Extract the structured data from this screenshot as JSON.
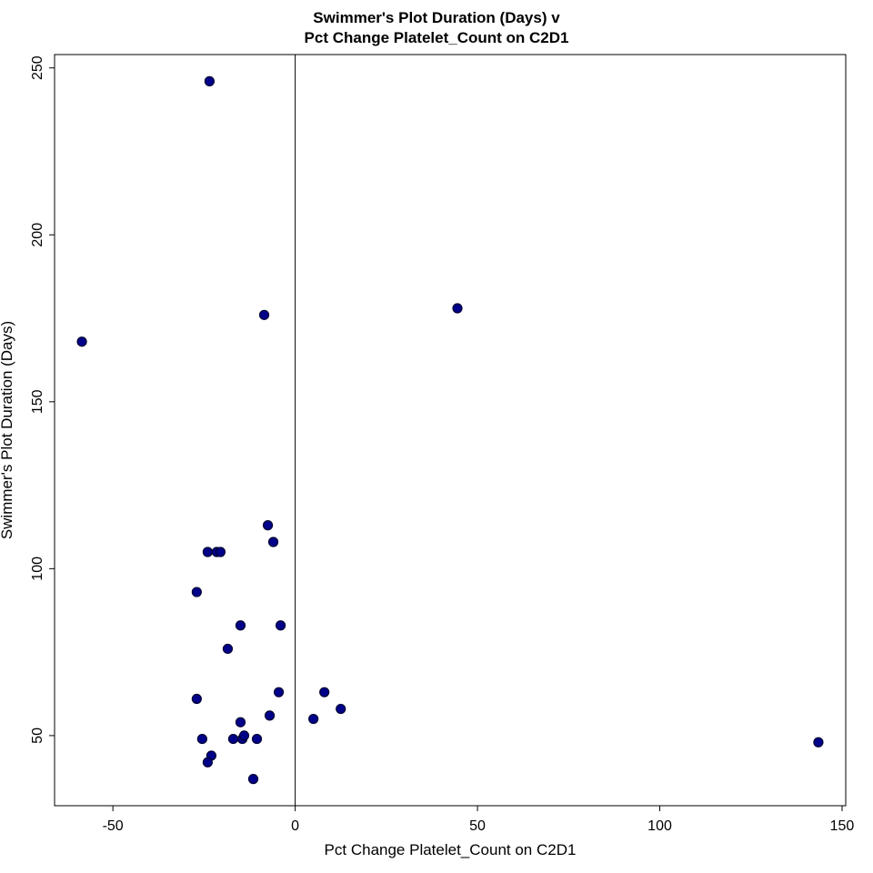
{
  "chart_data": {
    "type": "scatter",
    "title_lines": [
      "Swimmer's Plot Duration (Days) v",
      "Pct Change Platelet_Count on C2D1"
    ],
    "xlabel": "Pct Change Platelet_Count on C2D1",
    "ylabel": "Swimmer's Plot Duration (Days)",
    "xlim": [
      -66,
      151
    ],
    "ylim": [
      29,
      254
    ],
    "x_ticks": [
      -50,
      0,
      50,
      100,
      150
    ],
    "y_ticks": [
      50,
      100,
      150,
      200,
      250
    ],
    "x_tick_labels": [
      "-50",
      "0",
      "50",
      "100",
      "150"
    ],
    "y_tick_labels": [
      "50",
      "100",
      "150",
      "200",
      "250"
    ],
    "reference_line_x": 0,
    "grid": false,
    "marker_color": "#00008B",
    "marker_edge_color": "#000033",
    "points": [
      {
        "x": -23.5,
        "y": 246
      },
      {
        "x": -58.5,
        "y": 168
      },
      {
        "x": -8.5,
        "y": 176
      },
      {
        "x": 44.5,
        "y": 178
      },
      {
        "x": -7.5,
        "y": 113
      },
      {
        "x": -24,
        "y": 105
      },
      {
        "x": -21.5,
        "y": 105
      },
      {
        "x": -20.5,
        "y": 105
      },
      {
        "x": -6,
        "y": 108
      },
      {
        "x": -27,
        "y": 93
      },
      {
        "x": -15,
        "y": 83
      },
      {
        "x": -4,
        "y": 83
      },
      {
        "x": -18.5,
        "y": 76
      },
      {
        "x": -27,
        "y": 61
      },
      {
        "x": -4.5,
        "y": 63
      },
      {
        "x": 8,
        "y": 63
      },
      {
        "x": 12.5,
        "y": 58
      },
      {
        "x": -7,
        "y": 56
      },
      {
        "x": 5,
        "y": 55
      },
      {
        "x": -15,
        "y": 54
      },
      {
        "x": -25.5,
        "y": 49
      },
      {
        "x": -17,
        "y": 49
      },
      {
        "x": -14.5,
        "y": 49
      },
      {
        "x": -14,
        "y": 50
      },
      {
        "x": -10.5,
        "y": 49
      },
      {
        "x": -23,
        "y": 44
      },
      {
        "x": -24,
        "y": 42
      },
      {
        "x": -11.5,
        "y": 37
      },
      {
        "x": 143.5,
        "y": 48
      }
    ]
  }
}
